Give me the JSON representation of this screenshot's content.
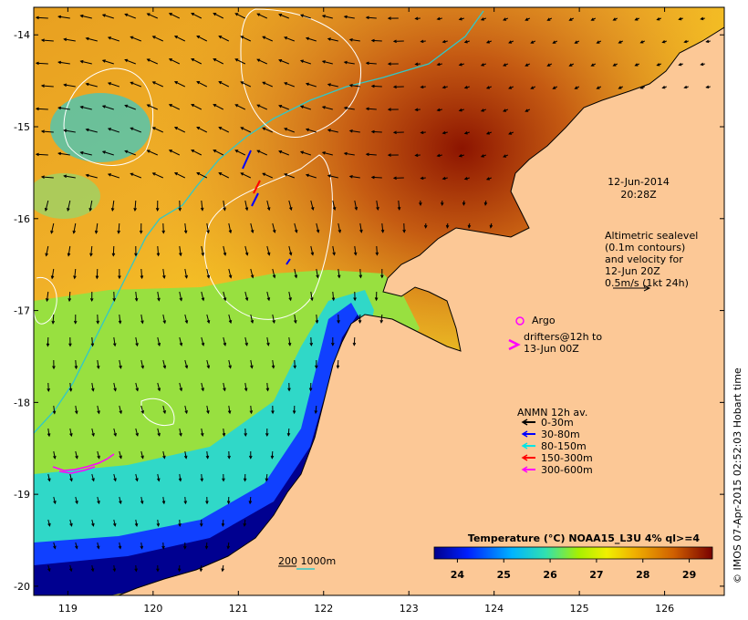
{
  "map": {
    "date_label": "12-Jun-2014",
    "time_label": "20:28Z",
    "altimetry_lines": [
      "Altimetric sealevel",
      "(0.1m contours)",
      "and velocity for",
      "12-Jun 20Z",
      "0.5m/s (1kt 24h)"
    ],
    "argo_label": "Argo",
    "drifters_lines": [
      "drifters@12h to",
      "13-Jun 00Z"
    ],
    "anmn_title": "ANMN 12h av.",
    "anmn_legend": [
      {
        "label": "0-30m",
        "color": "#000000"
      },
      {
        "label": "30-80m",
        "color": "#0000ff"
      },
      {
        "label": "80-150m",
        "color": "#00e5e5"
      },
      {
        "label": "150-300m",
        "color": "#ff0000"
      },
      {
        "label": "300-600m",
        "color": "#ff00ff"
      }
    ],
    "isobath_label": "200  1000m",
    "colorbar": {
      "title": "Temperature (°C) NOAA15_L3U 4% ql>=4",
      "ticks": [
        "24",
        "25",
        "26",
        "27",
        "28",
        "29"
      ],
      "range": [
        23.5,
        29.5
      ]
    },
    "credit": "© IMOS 07-Apr-2015 02:52:03 Hobart time",
    "x_ticks": [
      "119",
      "120",
      "121",
      "122",
      "123",
      "124",
      "125",
      "126"
    ],
    "y_ticks": [
      "-14",
      "-15",
      "-16",
      "-17",
      "-18",
      "-19",
      "-20"
    ],
    "lon_range": [
      118.6,
      126.7
    ],
    "lat_range": [
      -20.1,
      -13.7
    ],
    "colors": {
      "land": "#fcc896",
      "argo": "#ff00ff",
      "drifter": "#ff00ff",
      "contour": "#ffffff",
      "isobath": "#30c8c8"
    }
  }
}
